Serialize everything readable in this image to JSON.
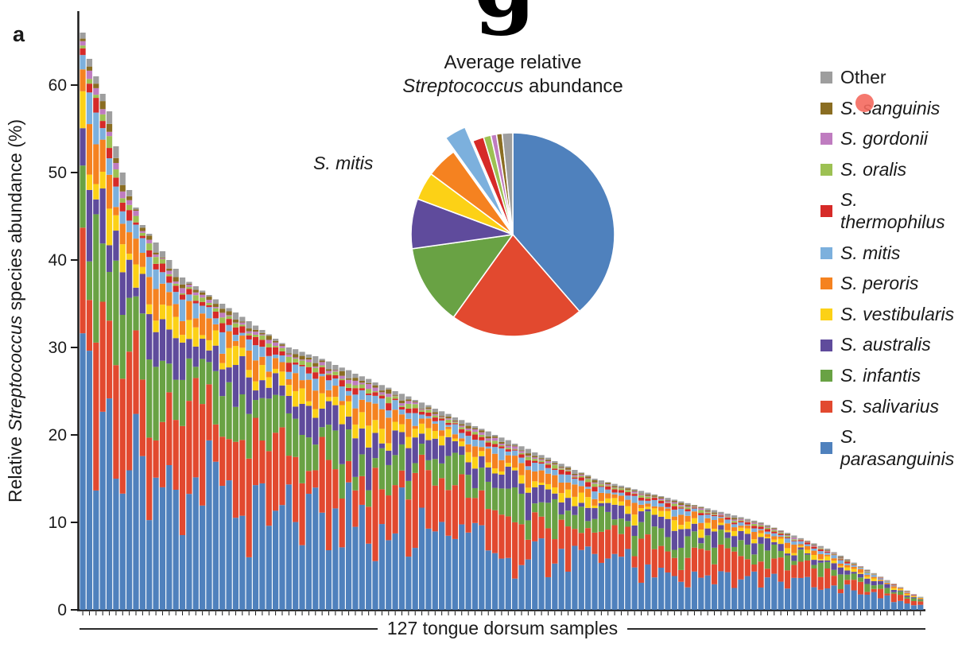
{
  "page": {
    "panel_label": "a",
    "cropped_title_fragment": "g"
  },
  "marker": {
    "color": "#f4695e"
  },
  "chart_data": {
    "type": [
      "bar",
      "pie"
    ],
    "bar_chart": {
      "type": "bar",
      "stacked": true,
      "ylabel_parts": {
        "prefix": "Relative ",
        "italic": "Streptococcus",
        "suffix": " species abundance (%)"
      },
      "xlabel": "127 tongue dorsum samples",
      "n_samples": 127,
      "ylim": [
        0,
        68
      ],
      "yticks": [
        0,
        10,
        20,
        30,
        40,
        50,
        60
      ],
      "grid": false,
      "species_bottom_to_top": [
        "S. parasanguinis",
        "S. salivarius",
        "S. infantis",
        "S. australis",
        "S. vestibularis",
        "S. peroris",
        "S. mitis",
        "S. thermophilus",
        "S. oralis",
        "S. gordonii",
        "S. sanguinis",
        "Other"
      ],
      "colors": {
        "S. parasanguinis": "#4f81bd",
        "S. salivarius": "#e2492f",
        "S. infantis": "#69a244",
        "S. australis": "#5f4b9c",
        "S. vestibularis": "#fcd116",
        "S. peroris": "#f58220",
        "S. mitis": "#7cb0dd",
        "S. thermophilus": "#d62a28",
        "S. oralis": "#9dc153",
        "S. gordonii": "#bf7cc0",
        "S. sanguinis": "#8a6d22",
        "Other": "#9e9e9e"
      },
      "avg_percent": {
        "S. parasanguinis": 39,
        "S. salivarius": 21.5,
        "S. infantis": 13,
        "S. australis": 8,
        "S. vestibularis": 4.5,
        "S. peroris": 5,
        "S. mitis": 3.5,
        "S. thermophilus": 1.8,
        "S. oralis": 1.2,
        "S. gordonii": 0.9,
        "S. sanguinis": 0.9,
        "Other": 1.7
      },
      "sample_totals_percent": [
        66,
        63,
        61,
        59,
        57,
        53,
        50,
        48,
        46,
        44,
        43,
        42,
        41,
        40,
        39,
        38,
        37.5,
        37,
        36.5,
        36,
        35.5,
        35,
        34.5,
        34,
        33.5,
        33,
        32.5,
        32,
        31.5,
        31,
        30.5,
        30,
        29.8,
        29.5,
        29.2,
        29,
        28.7,
        28.4,
        28,
        27.7,
        27.4,
        27,
        26.7,
        26.4,
        26,
        25.7,
        25.4,
        25,
        24.7,
        24.4,
        24,
        23.7,
        23.4,
        23,
        22.7,
        22.4,
        22,
        21.7,
        21.4,
        21,
        20.7,
        20.4,
        20,
        19.7,
        19.4,
        19,
        18.7,
        18.4,
        18,
        17.7,
        17.4,
        17,
        16.7,
        16.4,
        16,
        15.7,
        15.4,
        15,
        14.8,
        14.6,
        14.4,
        14.2,
        14,
        13.8,
        13.6,
        13.4,
        13.2,
        13,
        12.8,
        12.6,
        12.4,
        12.2,
        12,
        11.8,
        11.6,
        11.4,
        11.2,
        11,
        10.8,
        10.6,
        10.4,
        10.2,
        10,
        9.7,
        9.4,
        9.1,
        8.8,
        8.5,
        8.2,
        7.9,
        7.6,
        7.3,
        7,
        6.6,
        6.2,
        5.8,
        5.4,
        5,
        4.6,
        4.2,
        3.8,
        3.4,
        3,
        2.6,
        2.2,
        1.8,
        1.5
      ]
    },
    "pie_chart": {
      "type": "pie",
      "title_line1": "Average relative",
      "title_line2_italic": "Streptococcus",
      "title_line2_rest": " abundance",
      "callout_label": "S. mitis",
      "exploded_slice": "S. mitis",
      "order_clockwise_from_top": [
        "S. parasanguinis",
        "S. salivarius",
        "S. infantis",
        "S. australis",
        "S. vestibularis",
        "S. peroris",
        "S. mitis",
        "S. thermophilus",
        "S. oralis",
        "S. gordonii",
        "S. sanguinis",
        "Other"
      ],
      "values_percent": {
        "S. parasanguinis": 39,
        "S. salivarius": 21.5,
        "S. infantis": 13,
        "S. australis": 8,
        "S. vestibularis": 4.5,
        "S. peroris": 5,
        "S. mitis": 3.5,
        "S. thermophilus": 1.8,
        "S. oralis": 1.2,
        "S. gordonii": 0.9,
        "S. sanguinis": 0.9,
        "Other": 1.7
      }
    },
    "legend": {
      "position": "right",
      "items": [
        {
          "label": "Other",
          "color": "#9e9e9e",
          "italic": false
        },
        {
          "label": "S. sanguinis",
          "color": "#8a6d22",
          "italic": true
        },
        {
          "label": "S. gordonii",
          "color": "#bf7cc0",
          "italic": true
        },
        {
          "label": "S. oralis",
          "color": "#9dc153",
          "italic": true
        },
        {
          "label": "S. thermophilus",
          "color": "#d62a28",
          "italic": true
        },
        {
          "label": "S. mitis",
          "color": "#7cb0dd",
          "italic": true
        },
        {
          "label": "S. peroris",
          "color": "#f58220",
          "italic": true
        },
        {
          "label": "S. vestibularis",
          "color": "#fcd116",
          "italic": true
        },
        {
          "label": "S. australis",
          "color": "#5f4b9c",
          "italic": true
        },
        {
          "label": "S. infantis",
          "color": "#69a244",
          "italic": true
        },
        {
          "label": "S. salivarius",
          "color": "#e2492f",
          "italic": true
        },
        {
          "label": "S. parasanguinis",
          "color": "#4f81bd",
          "italic": true
        }
      ]
    }
  }
}
